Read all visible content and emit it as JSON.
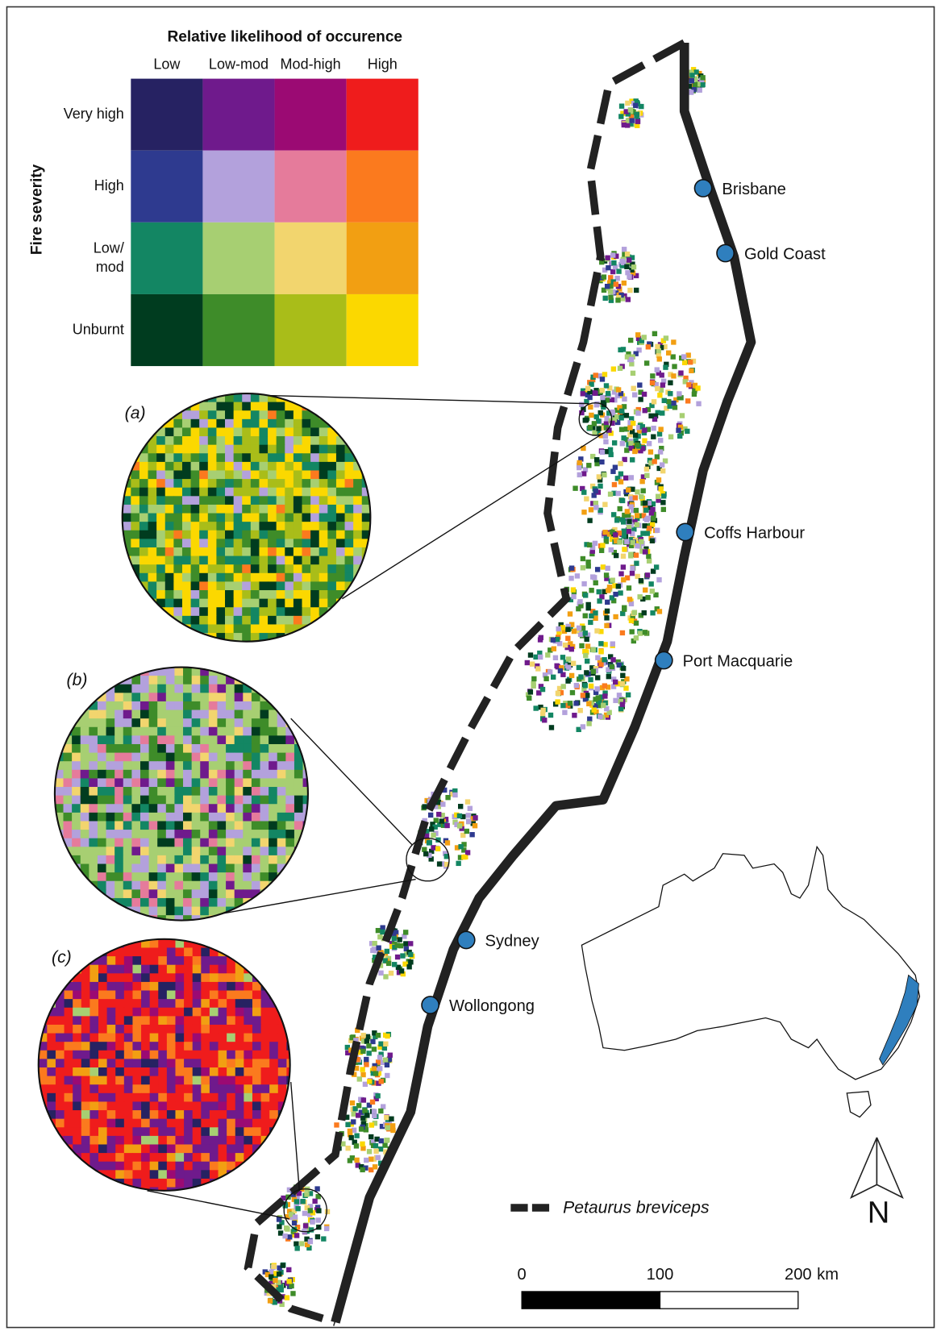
{
  "legend": {
    "title": "Relative likelihood of occurence",
    "y_label": "Fire severity",
    "columns": [
      "Low",
      "Low-mod",
      "Mod-high",
      "High"
    ],
    "rows": [
      {
        "label": [
          "Very high"
        ],
        "colors": [
          "#262262",
          "#6f1a8c",
          "#9b0a73",
          "#ef1c1c"
        ]
      },
      {
        "label": [
          "High"
        ],
        "colors": [
          "#2e3a8f",
          "#b3a1dc",
          "#e57b9b",
          "#fb7a1e"
        ]
      },
      {
        "label": [
          "Low/",
          "mod"
        ],
        "colors": [
          "#138663",
          "#a7cf72",
          "#f2d56e",
          "#f29f12"
        ]
      },
      {
        "label": [
          "Unburnt"
        ],
        "colors": [
          "#003c1f",
          "#3e8c29",
          "#a9bd19",
          "#fbd800"
        ]
      }
    ]
  },
  "insets": [
    "(a)",
    "(b)",
    "(c)"
  ],
  "cities": [
    "Brisbane",
    "Gold Coast",
    "Coffs Harbour",
    "Port Macquarie",
    "Sydney",
    "Wollongong"
  ],
  "species_legend": "Petaurus breviceps",
  "scale_bar": {
    "ticks": [
      0,
      100,
      200
    ],
    "unit": "km"
  },
  "north": "N"
}
